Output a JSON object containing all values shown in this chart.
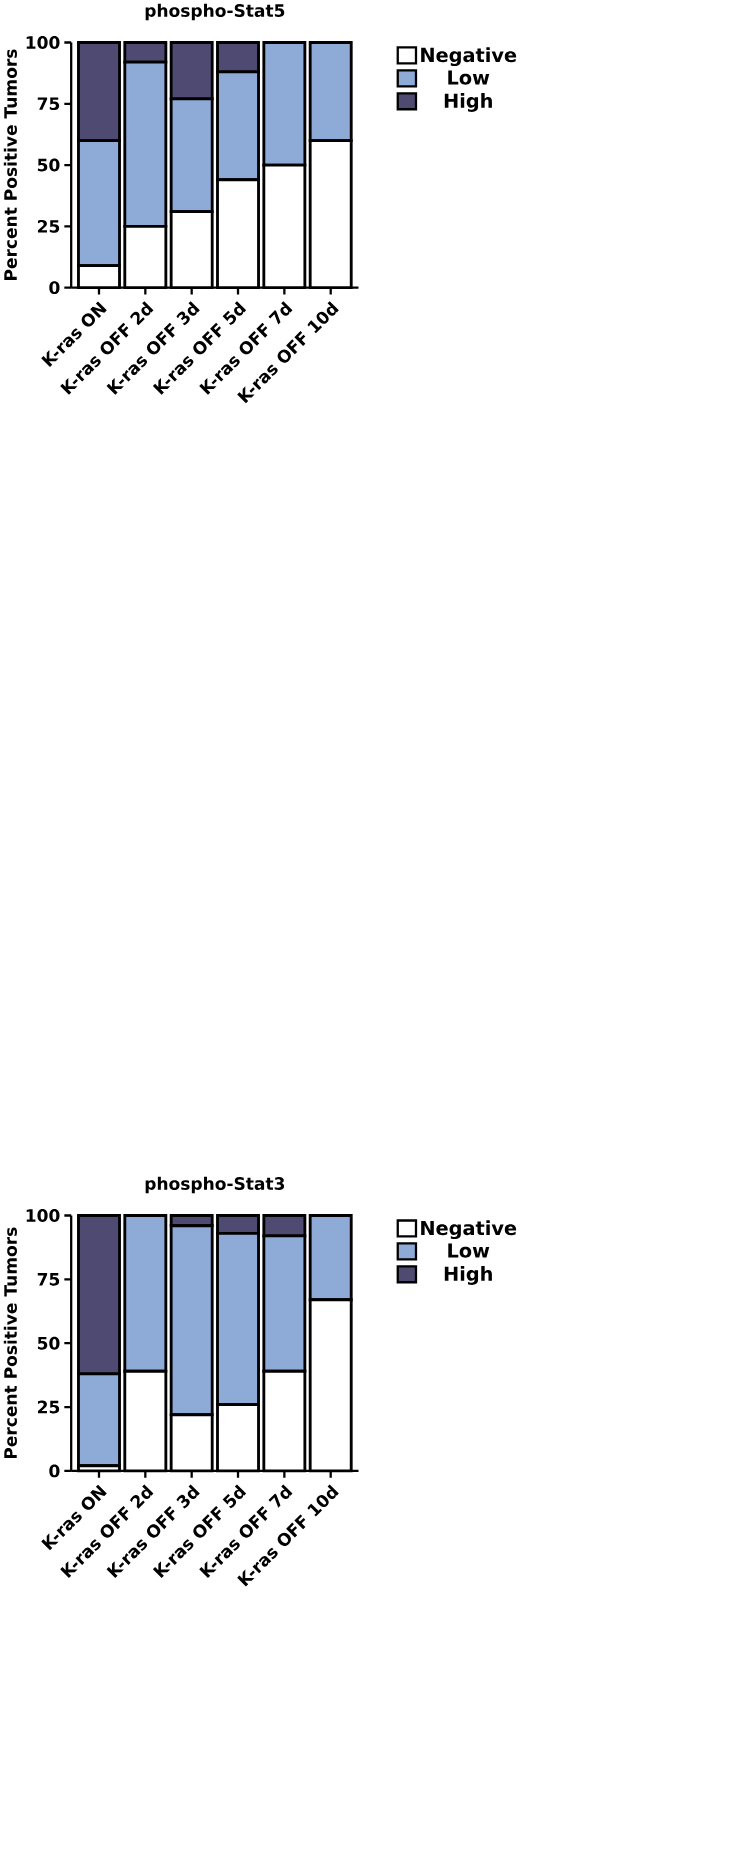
{
  "chart_data": [
    {
      "type": "bar",
      "stacked": true,
      "title": "phospho-Stat5",
      "ylabel": "Percent Positive Tumors",
      "categories": [
        "K-ras ON",
        "K-ras OFF 2d",
        "K-ras OFF 3d",
        "K-ras OFF 5d",
        "K-ras OFF 7d",
        "K-ras OFF 10d"
      ],
      "ylim": [
        0,
        100
      ],
      "yticks": [
        0,
        25,
        50,
        75,
        100
      ],
      "legend": "right",
      "series": [
        {
          "name": "Negative",
          "color": "#ffffff",
          "values": [
            9,
            25,
            31,
            44,
            50,
            60
          ]
        },
        {
          "name": "Low",
          "color": "#8eaad6",
          "values": [
            51,
            67,
            46,
            44,
            50,
            40
          ]
        },
        {
          "name": "High",
          "color": "#4e4a72",
          "values": [
            40,
            8,
            23,
            12,
            0,
            0
          ]
        }
      ]
    },
    {
      "type": "bar",
      "stacked": true,
      "title": "phospho-Stat3",
      "ylabel": "Percent Positive Tumors",
      "categories": [
        "K-ras ON",
        "K-ras OFF 2d",
        "K-ras OFF 3d",
        "K-ras OFF 5d",
        "K-ras OFF 7d",
        "K-ras OFF 10d"
      ],
      "ylim": [
        0,
        100
      ],
      "yticks": [
        0,
        25,
        50,
        75,
        100
      ],
      "legend": "right",
      "series": [
        {
          "name": "Negative",
          "color": "#ffffff",
          "values": [
            2,
            39,
            22,
            26,
            39,
            67
          ]
        },
        {
          "name": "Low",
          "color": "#8eaad6",
          "values": [
            36,
            61,
            74,
            67,
            53,
            33
          ]
        },
        {
          "name": "High",
          "color": "#4e4a72",
          "values": [
            62,
            0,
            4,
            7,
            8,
            0
          ]
        }
      ]
    }
  ]
}
